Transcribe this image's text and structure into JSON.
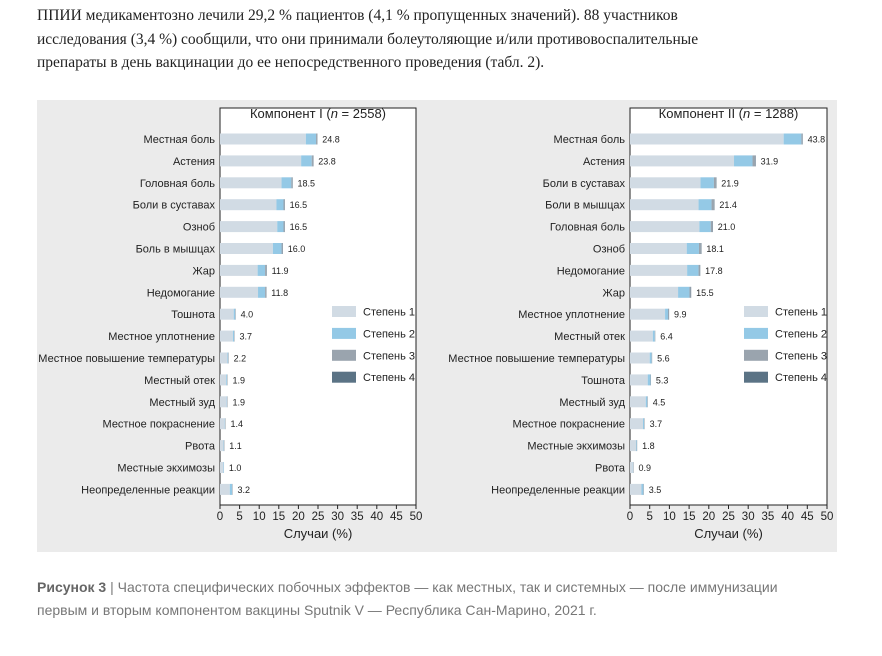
{
  "intro_lines": [
    "ППИИ медикаментозно лечили 29,2 % пациентов (4,1 % пропущенных значений). 88 участников",
    "исследования (3,4 %) сообщили, что они принимали болеутоляющие и/или противовоспалительные",
    "препараты в день вакцинации до ее непосредственного проведения (табл. 2)."
  ],
  "caption": {
    "label": "Рисунок 3",
    "separator": " | ",
    "lines": [
      "Частота специфических побочных эффектов — как местных, так и системных — после иммунизации",
      "первым и вторым компонентом вакцины Sputnik V — Республика Сан-Марино, 2021 г."
    ]
  },
  "colors": {
    "grade1": "#d1dbe4",
    "grade2": "#94c9e6",
    "grade3": "#9aa4ae",
    "grade4": "#5b7385"
  },
  "chart_data": [
    {
      "type": "bar",
      "orientation": "horizontal",
      "stacked": true,
      "title_prefix": "Компонент I (",
      "title_n": "n",
      "title_suffix": " = 2558)",
      "xlabel": "Случаи (%)",
      "xlim": [
        0,
        50
      ],
      "xticks": [
        0,
        5,
        10,
        15,
        20,
        25,
        30,
        35,
        40,
        45,
        50
      ],
      "legend": [
        "Степень 1",
        "Степень 2",
        "Степень 3",
        "Степень 4"
      ],
      "legend_position": "right",
      "categories": [
        "Местная боль",
        "Астения",
        "Головная боль",
        "Боли в суставах",
        "Озноб",
        "Боль в мышцах",
        "Жар",
        "Недомогание",
        "Тошнота",
        "Местное уплотнение",
        "Местное повышение температуры",
        "Местный отек",
        "Местный зуд",
        "Местное покраснение",
        "Рвота",
        "Местные экхимозы",
        "Неопределенные реакции"
      ],
      "totals": [
        "24.8",
        "23.8",
        "18.5",
        "16.5",
        "16.5",
        "16.0",
        "11.9",
        "11.8",
        "4.0",
        "3.7",
        "2.2",
        "1.9",
        "1.9",
        "1.4",
        "1.1",
        "1.0",
        "3.2"
      ],
      "series": [
        {
          "name": "Степень 1",
          "values": [
            21.9,
            20.7,
            15.7,
            14.4,
            14.6,
            13.5,
            9.6,
            9.7,
            3.5,
            3.3,
            1.9,
            1.6,
            1.7,
            1.2,
            0.9,
            0.9,
            2.5
          ]
        },
        {
          "name": "Степень 2",
          "values": [
            2.6,
            2.7,
            2.5,
            1.8,
            1.6,
            2.2,
            1.9,
            1.8,
            0.4,
            0.3,
            0.2,
            0.2,
            0.1,
            0.1,
            0.1,
            0.1,
            0.6
          ]
        },
        {
          "name": "Степень 3",
          "values": [
            0.2,
            0.3,
            0.2,
            0.2,
            0.2,
            0.2,
            0.3,
            0.2,
            0.1,
            0.1,
            0.1,
            0.1,
            0.1,
            0.1,
            0.1,
            0.0,
            0.1
          ]
        },
        {
          "name": "Степень 4",
          "values": [
            0.1,
            0.1,
            0.1,
            0.1,
            0.1,
            0.1,
            0.1,
            0.1,
            0.0,
            0.0,
            0.0,
            0.0,
            0.0,
            0.0,
            0.0,
            0.0,
            0.0
          ]
        }
      ]
    },
    {
      "type": "bar",
      "orientation": "horizontal",
      "stacked": true,
      "title_prefix": "Компонент II (",
      "title_n": "n",
      "title_suffix": " = 1288)",
      "xlabel": "Случаи (%)",
      "xlim": [
        0,
        50
      ],
      "xticks": [
        0,
        5,
        10,
        15,
        20,
        25,
        30,
        35,
        40,
        45,
        50
      ],
      "legend": [
        "Степень 1",
        "Степень 2",
        "Степень 3",
        "Степень 4"
      ],
      "legend_position": "right",
      "categories": [
        "Местная боль",
        "Астения",
        "Боли в суставах",
        "Боли в мышцах",
        "Головная боль",
        "Озноб",
        "Недомогание",
        "Жар",
        "Местное уплотнение",
        "Местный отек",
        "Местное повышение температуры",
        "Тошнота",
        "Местный зуд",
        "Местное покраснение",
        "Местные экхимозы",
        "Рвота",
        "Неопределенные реакции"
      ],
      "totals": [
        "43.8",
        "31.9",
        "21.9",
        "21.4",
        "21.0",
        "18.1",
        "17.8",
        "15.5",
        "9.9",
        "6.4",
        "5.6",
        "5.3",
        "4.5",
        "3.7",
        "1.8",
        "0.9",
        "3.5"
      ],
      "series": [
        {
          "name": "Степень 1",
          "values": [
            39.0,
            26.4,
            17.9,
            17.4,
            17.6,
            14.4,
            14.5,
            12.2,
            8.9,
            5.8,
            5.0,
            4.5,
            4.0,
            3.3,
            1.5,
            0.7,
            2.9
          ]
        },
        {
          "name": "Степень 2",
          "values": [
            4.5,
            4.7,
            3.4,
            3.3,
            2.9,
            3.1,
            2.9,
            2.9,
            0.8,
            0.5,
            0.5,
            0.7,
            0.4,
            0.3,
            0.2,
            0.1,
            0.5
          ]
        },
        {
          "name": "Степень 3",
          "values": [
            0.2,
            0.7,
            0.5,
            0.6,
            0.4,
            0.5,
            0.3,
            0.3,
            0.1,
            0.1,
            0.1,
            0.1,
            0.1,
            0.1,
            0.1,
            0.1,
            0.1
          ]
        },
        {
          "name": "Степень 4",
          "values": [
            0.1,
            0.1,
            0.1,
            0.1,
            0.1,
            0.1,
            0.1,
            0.1,
            0.1,
            0.0,
            0.0,
            0.0,
            0.0,
            0.0,
            0.0,
            0.0,
            0.0
          ]
        }
      ]
    }
  ]
}
